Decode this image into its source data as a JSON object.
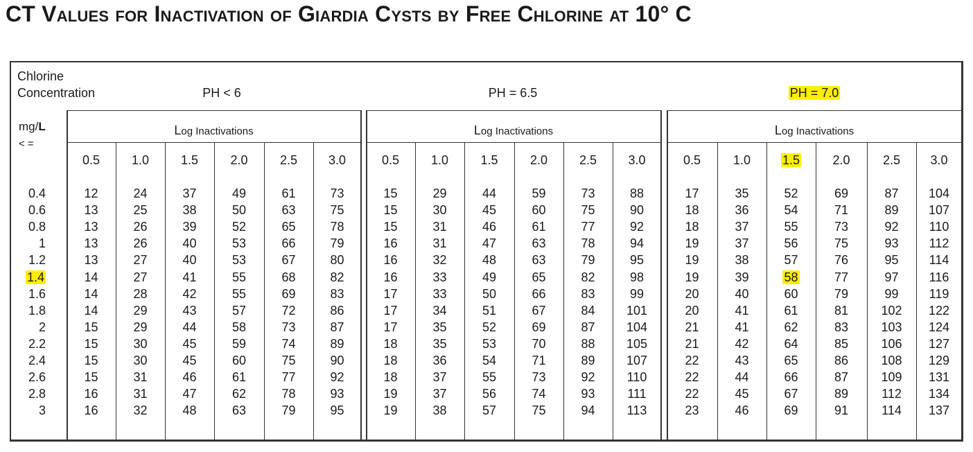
{
  "title": "CT Values for Inactivation of Giardia Cysts by Free Chlorine at 10° C",
  "row_header": {
    "line1": "Chlorine",
    "line2": "Concentration",
    "unit_prefix": "mg/",
    "unit_bold": "L",
    "unit_line2": "< ="
  },
  "groups": [
    {
      "ph_label": "PH < 6",
      "subheader_first": "L",
      "subheader_rest": "og Inactivations"
    },
    {
      "ph_label": "PH = 6.5",
      "subheader_first": "L",
      "subheader_rest": "og Inactivations"
    },
    {
      "ph_label": "PH = 7.0",
      "subheader_first": "L",
      "subheader_rest": "og Inactivations"
    }
  ],
  "log_levels": [
    "0.5",
    "1.0",
    "1.5",
    "2.0",
    "2.5",
    "3.0"
  ],
  "concentrations": [
    "0.4",
    "0.6",
    "0.8",
    "1",
    "1.2",
    "1.4",
    "1.6",
    "1.8",
    "2",
    "2.2",
    "2.4",
    "2.6",
    "2.8",
    "3"
  ],
  "values": [
    [
      [
        12,
        24,
        37,
        49,
        61,
        73
      ],
      [
        15,
        29,
        44,
        59,
        73,
        88
      ],
      [
        17,
        35,
        52,
        69,
        87,
        104
      ]
    ],
    [
      [
        13,
        25,
        38,
        50,
        63,
        75
      ],
      [
        15,
        30,
        45,
        60,
        75,
        90
      ],
      [
        18,
        36,
        54,
        71,
        89,
        107
      ]
    ],
    [
      [
        13,
        26,
        39,
        52,
        65,
        78
      ],
      [
        15,
        31,
        46,
        61,
        77,
        92
      ],
      [
        18,
        37,
        55,
        73,
        92,
        110
      ]
    ],
    [
      [
        13,
        26,
        40,
        53,
        66,
        79
      ],
      [
        16,
        31,
        47,
        63,
        78,
        94
      ],
      [
        19,
        37,
        56,
        75,
        93,
        112
      ]
    ],
    [
      [
        13,
        27,
        40,
        53,
        67,
        80
      ],
      [
        16,
        32,
        48,
        63,
        79,
        95
      ],
      [
        19,
        38,
        57,
        76,
        95,
        114
      ]
    ],
    [
      [
        14,
        27,
        41,
        55,
        68,
        82
      ],
      [
        16,
        33,
        49,
        65,
        82,
        98
      ],
      [
        19,
        39,
        58,
        77,
        97,
        116
      ]
    ],
    [
      [
        14,
        28,
        42,
        55,
        69,
        83
      ],
      [
        17,
        33,
        50,
        66,
        83,
        99
      ],
      [
        20,
        40,
        60,
        79,
        99,
        119
      ]
    ],
    [
      [
        14,
        29,
        43,
        57,
        72,
        86
      ],
      [
        17,
        34,
        51,
        67,
        84,
        101
      ],
      [
        20,
        41,
        61,
        81,
        102,
        122
      ]
    ],
    [
      [
        15,
        29,
        44,
        58,
        73,
        87
      ],
      [
        17,
        35,
        52,
        69,
        87,
        104
      ],
      [
        21,
        41,
        62,
        83,
        103,
        124
      ]
    ],
    [
      [
        15,
        30,
        45,
        59,
        74,
        89
      ],
      [
        18,
        35,
        53,
        70,
        88,
        105
      ],
      [
        21,
        42,
        64,
        85,
        106,
        127
      ]
    ],
    [
      [
        15,
        30,
        45,
        60,
        75,
        90
      ],
      [
        18,
        36,
        54,
        71,
        89,
        107
      ],
      [
        22,
        43,
        65,
        86,
        108,
        129
      ]
    ],
    [
      [
        15,
        31,
        46,
        61,
        77,
        92
      ],
      [
        18,
        37,
        55,
        73,
        92,
        110
      ],
      [
        22,
        44,
        66,
        87,
        109,
        131
      ]
    ],
    [
      [
        16,
        31,
        47,
        62,
        78,
        93
      ],
      [
        19,
        37,
        56,
        74,
        93,
        111
      ],
      [
        22,
        45,
        67,
        89,
        112,
        134
      ]
    ],
    [
      [
        16,
        32,
        48,
        63,
        79,
        95
      ],
      [
        19,
        38,
        57,
        75,
        94,
        113
      ],
      [
        23,
        46,
        69,
        91,
        114,
        137
      ]
    ]
  ],
  "highlights": {
    "color": "#ffee00",
    "group_index": 2,
    "log_index": 2,
    "row_index": 5
  }
}
